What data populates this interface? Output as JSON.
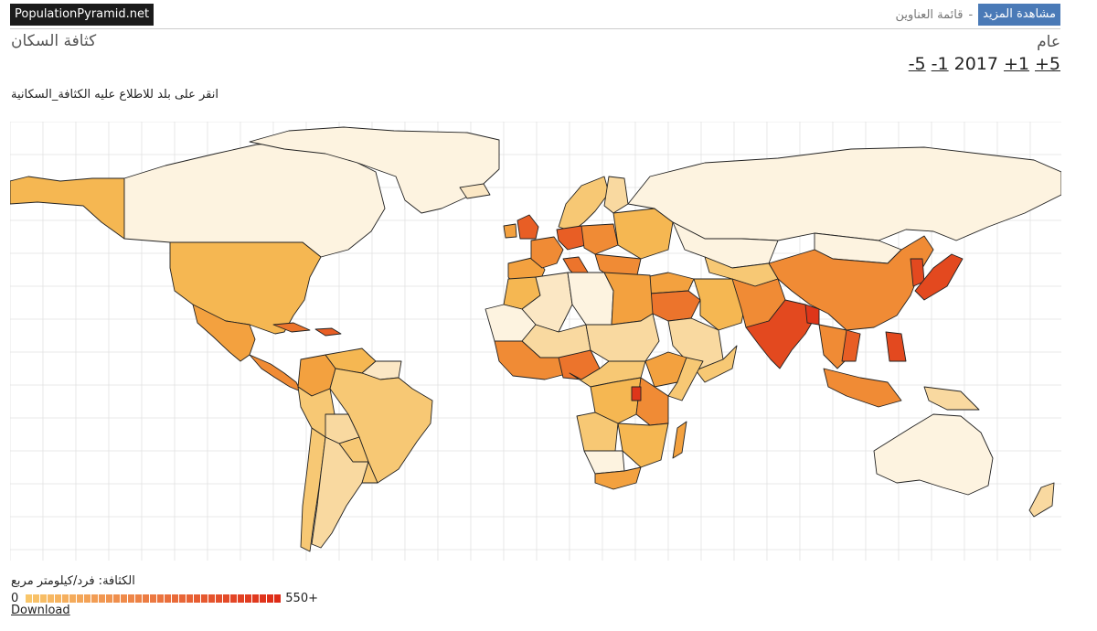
{
  "header": {
    "brand": "PopulationPyramid.net",
    "nav_more": "مشاهدة المزيد",
    "nav_separator": "-",
    "nav_list": "قائمة العناوين"
  },
  "page": {
    "title": "كثافة السكان",
    "year_label": "عام",
    "year": "2017",
    "year_controls": [
      "-5",
      "-1",
      "+1",
      "+5"
    ],
    "instruction": "انقر على بلد للاطلاع عليه الكثافة_السكانية"
  },
  "legend": {
    "title": "الكثافة: فرد/كيلومتر مربع",
    "min": "0",
    "max": "550+",
    "download": "Download",
    "colors": [
      "#fdf3e0",
      "#fbe7c4",
      "#f9d9a0",
      "#f7c874",
      "#f5b752",
      "#f3a13f",
      "#f08b35",
      "#ec742c",
      "#e85e25",
      "#e3491f",
      "#de361a"
    ]
  },
  "map": {
    "ocean": "#ffffff",
    "grid": "#e2e2e2",
    "border": "#222222",
    "regions": [
      {
        "name": "alaska",
        "level": 4
      },
      {
        "name": "canada",
        "level": 0
      },
      {
        "name": "greenland",
        "level": 0
      },
      {
        "name": "usa",
        "level": 4
      },
      {
        "name": "mexico",
        "level": 5
      },
      {
        "name": "central-america",
        "level": 6
      },
      {
        "name": "cuba",
        "level": 7
      },
      {
        "name": "hispaniola",
        "level": 8
      },
      {
        "name": "colombia",
        "level": 5
      },
      {
        "name": "venezuela",
        "level": 4
      },
      {
        "name": "guianas",
        "level": 1
      },
      {
        "name": "brazil",
        "level": 3
      },
      {
        "name": "peru",
        "level": 3
      },
      {
        "name": "bolivia",
        "level": 2
      },
      {
        "name": "paraguay",
        "level": 3
      },
      {
        "name": "chile",
        "level": 3
      },
      {
        "name": "argentina",
        "level": 2
      },
      {
        "name": "uruguay",
        "level": 3
      },
      {
        "name": "uk",
        "level": 8
      },
      {
        "name": "ireland",
        "level": 5
      },
      {
        "name": "iceland",
        "level": 1
      },
      {
        "name": "scandinavia",
        "level": 3
      },
      {
        "name": "finland",
        "level": 2
      },
      {
        "name": "iberia",
        "level": 5
      },
      {
        "name": "france",
        "level": 6
      },
      {
        "name": "benelux-germany",
        "level": 8
      },
      {
        "name": "italy",
        "level": 7
      },
      {
        "name": "central-europe",
        "level": 6
      },
      {
        "name": "eastern-europe",
        "level": 4
      },
      {
        "name": "balkans",
        "level": 6
      },
      {
        "name": "russia",
        "level": 0
      },
      {
        "name": "kazakhstan",
        "level": 0
      },
      {
        "name": "mongolia",
        "level": 0
      },
      {
        "name": "china",
        "level": 6
      },
      {
        "name": "korea",
        "level": 9
      },
      {
        "name": "japan",
        "level": 9
      },
      {
        "name": "turkey",
        "level": 5
      },
      {
        "name": "middle-east-levant",
        "level": 7
      },
      {
        "name": "saudi-arabia",
        "level": 2
      },
      {
        "name": "yemen-oman",
        "level": 3
      },
      {
        "name": "iran",
        "level": 4
      },
      {
        "name": "central-asia",
        "level": 3
      },
      {
        "name": "afghanistan-pakistan",
        "level": 6
      },
      {
        "name": "india",
        "level": 9
      },
      {
        "name": "bangladesh",
        "level": 10
      },
      {
        "name": "southeast-asia",
        "level": 6
      },
      {
        "name": "vietnam",
        "level": 8
      },
      {
        "name": "philippines",
        "level": 9
      },
      {
        "name": "indonesia",
        "level": 6
      },
      {
        "name": "papua",
        "level": 2
      },
      {
        "name": "australia",
        "level": 0
      },
      {
        "name": "new-zealand",
        "level": 2
      },
      {
        "name": "morocco",
        "level": 4
      },
      {
        "name": "algeria",
        "level": 1
      },
      {
        "name": "libya",
        "level": 0
      },
      {
        "name": "egypt",
        "level": 5
      },
      {
        "name": "western-sahara-mauritania",
        "level": 0
      },
      {
        "name": "mali-niger",
        "level": 2
      },
      {
        "name": "chad-sudan",
        "level": 2
      },
      {
        "name": "west-africa",
        "level": 6
      },
      {
        "name": "nigeria",
        "level": 7
      },
      {
        "name": "ethiopia",
        "level": 5
      },
      {
        "name": "horn",
        "level": 3
      },
      {
        "name": "central-africa",
        "level": 3
      },
      {
        "name": "drc",
        "level": 4
      },
      {
        "name": "east-africa",
        "level": 6
      },
      {
        "name": "rwanda-burundi",
        "level": 10
      },
      {
        "name": "angola",
        "level": 3
      },
      {
        "name": "zambia-mozambique",
        "level": 4
      },
      {
        "name": "namibia-botswana",
        "level": 0
      },
      {
        "name": "south-africa",
        "level": 5
      },
      {
        "name": "madagascar",
        "level": 5
      }
    ]
  }
}
